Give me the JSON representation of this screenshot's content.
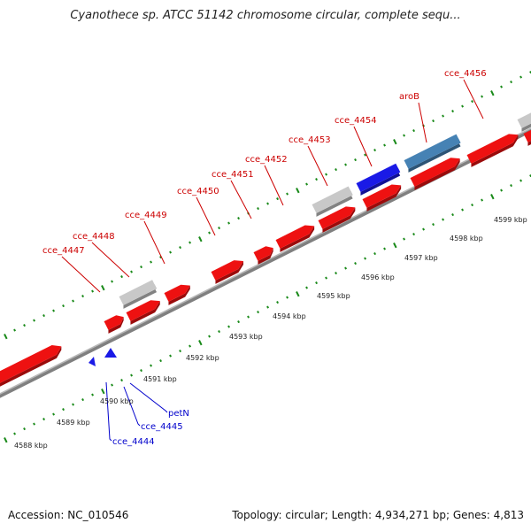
{
  "title": "Cyanothece sp. ATCC 51142 chromosome circular, complete sequ...",
  "footer": {
    "accession": "Accession: NC_010546",
    "summary": "Topology: circular; Length: 4,934,271 bp; Genes: 4,813"
  },
  "scale_labels": [
    "4588 kbp",
    "4589 kbp",
    "4590 kbp",
    "4591 kbp",
    "4592 kbp",
    "4593 kbp",
    "4594 kbp",
    "4595 kbp",
    "4596 kbp",
    "4597 kbp",
    "4598 kbp",
    "4599 kbp"
  ],
  "genes_forward": [
    "cce_4447",
    "cce_4448",
    "cce_4449",
    "cce_4450",
    "cce_4451",
    "cce_4452",
    "cce_4453",
    "cce_4454",
    "aroB",
    "cce_4456"
  ],
  "genes_reverse": [
    "cce_4444",
    "cce_4445",
    "petN"
  ],
  "colors": {
    "cds": "#ee1111",
    "pseudo": "#c8c8c8",
    "highlight": "#1a1ae6",
    "aroB": "#4682b4",
    "tick": "#1a8a1a",
    "label_forward": "#cc0000",
    "label_reverse": "#0000cc",
    "backbone": "#808080"
  }
}
